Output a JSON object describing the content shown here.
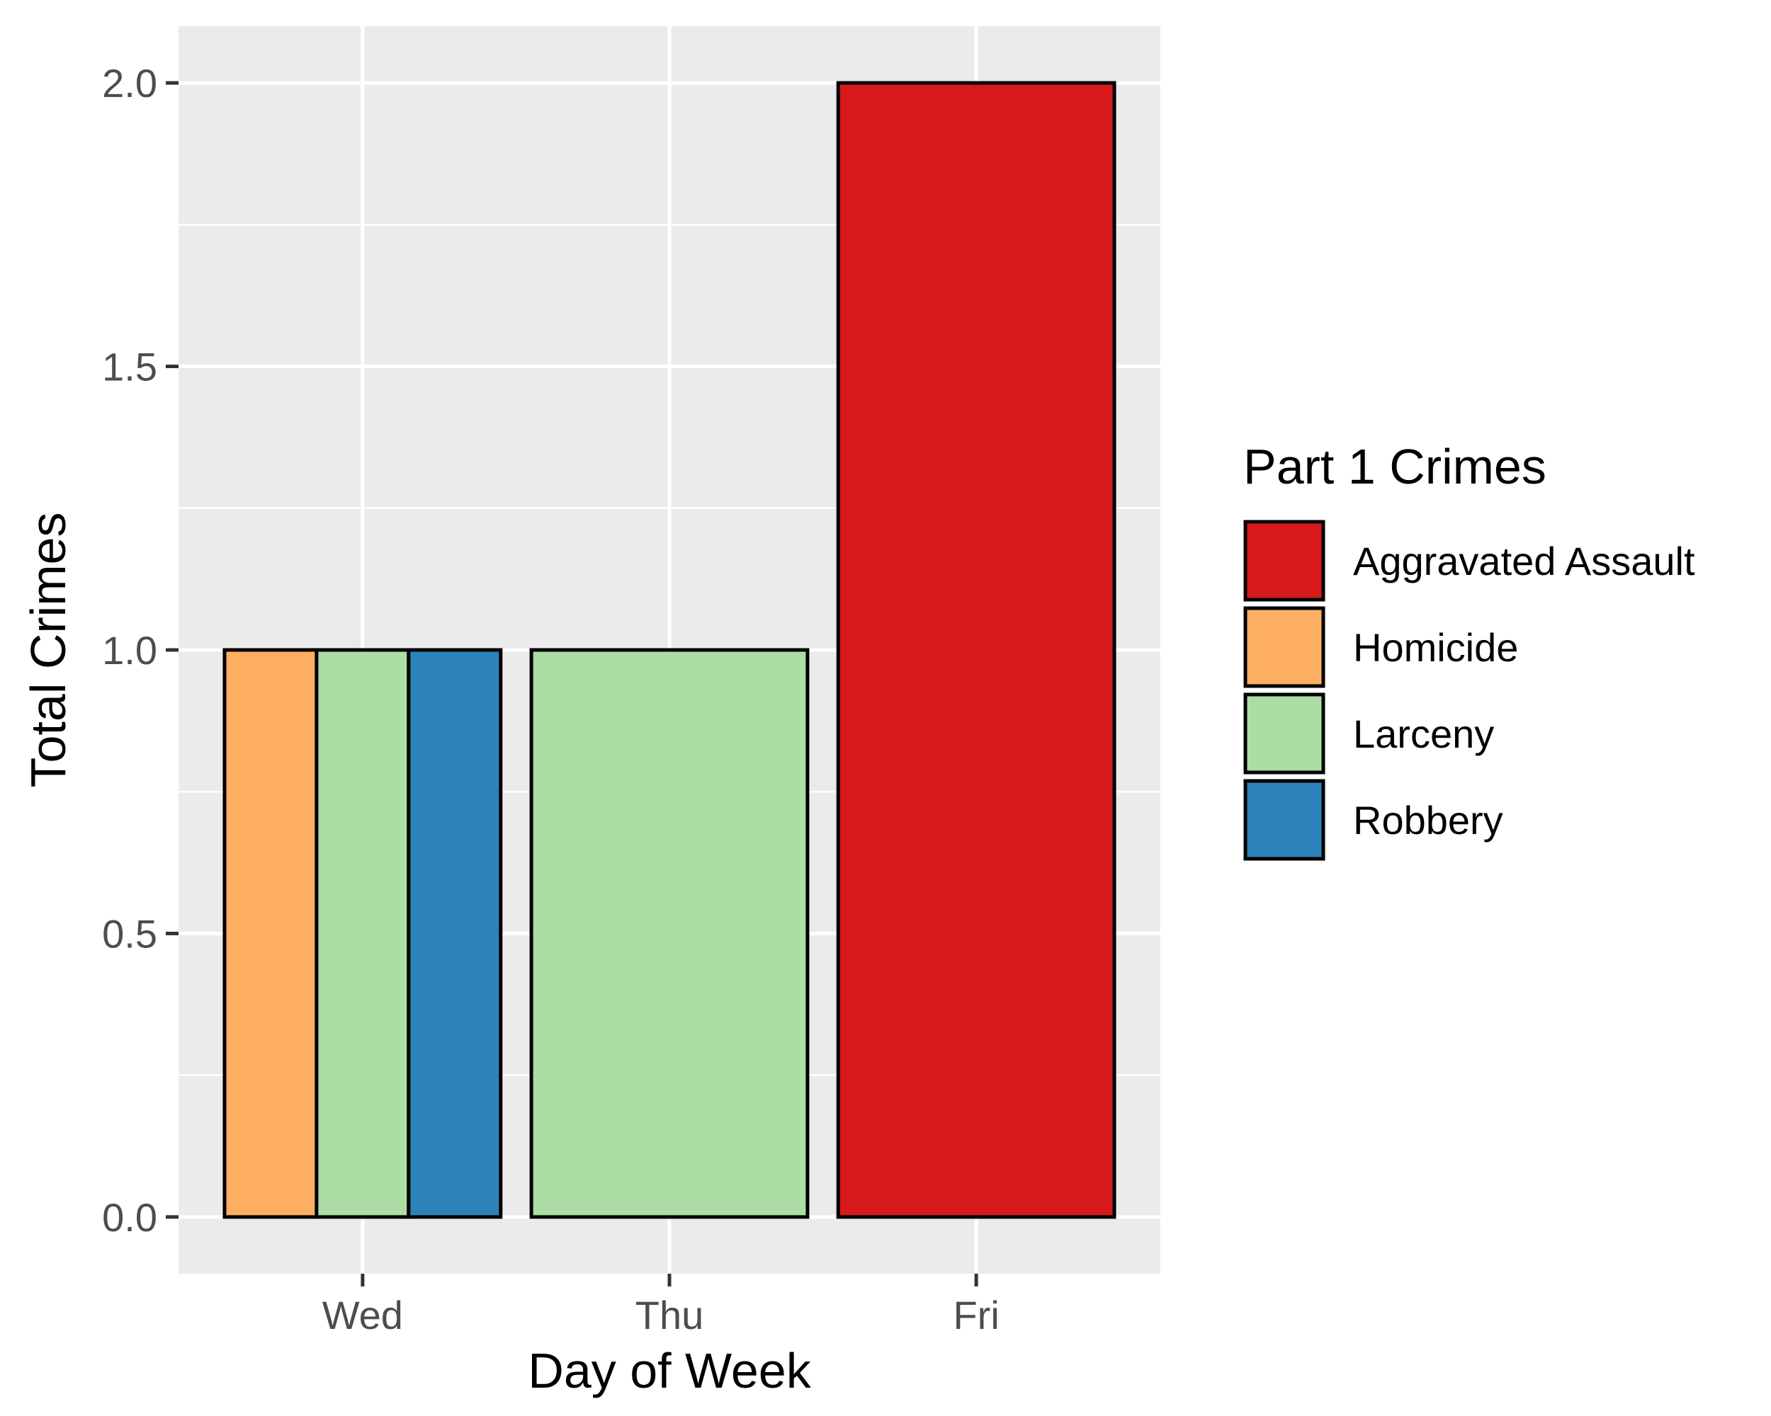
{
  "chart_data": {
    "type": "bar",
    "categories": [
      "Wed",
      "Thu",
      "Fri"
    ],
    "xlabel": "Day of Week",
    "ylabel": "Total Crimes",
    "ylim": [
      -0.1,
      2.1
    ],
    "yticks": [
      "0.0",
      "0.5",
      "1.0",
      "1.5",
      "2.0"
    ],
    "grid": true,
    "position": "dodge",
    "legend": {
      "title": "Part 1 Crimes",
      "placement": "right",
      "entries": [
        "Aggravated Assault",
        "Homicide",
        "Larceny",
        "Robbery"
      ]
    },
    "colors": {
      "Aggravated Assault": "#d7191c",
      "Homicide": "#fdae61",
      "Larceny": "#abdda4",
      "Robbery": "#2b83ba",
      "panel": "#ebebeb",
      "gridline": "#ffffff"
    },
    "bars": [
      {
        "category": "Wed",
        "series": "Homicide",
        "value": 1
      },
      {
        "category": "Wed",
        "series": "Larceny",
        "value": 1
      },
      {
        "category": "Wed",
        "series": "Robbery",
        "value": 1
      },
      {
        "category": "Thu",
        "series": "Larceny",
        "value": 1
      },
      {
        "category": "Fri",
        "series": "Aggravated Assault",
        "value": 2
      }
    ]
  }
}
